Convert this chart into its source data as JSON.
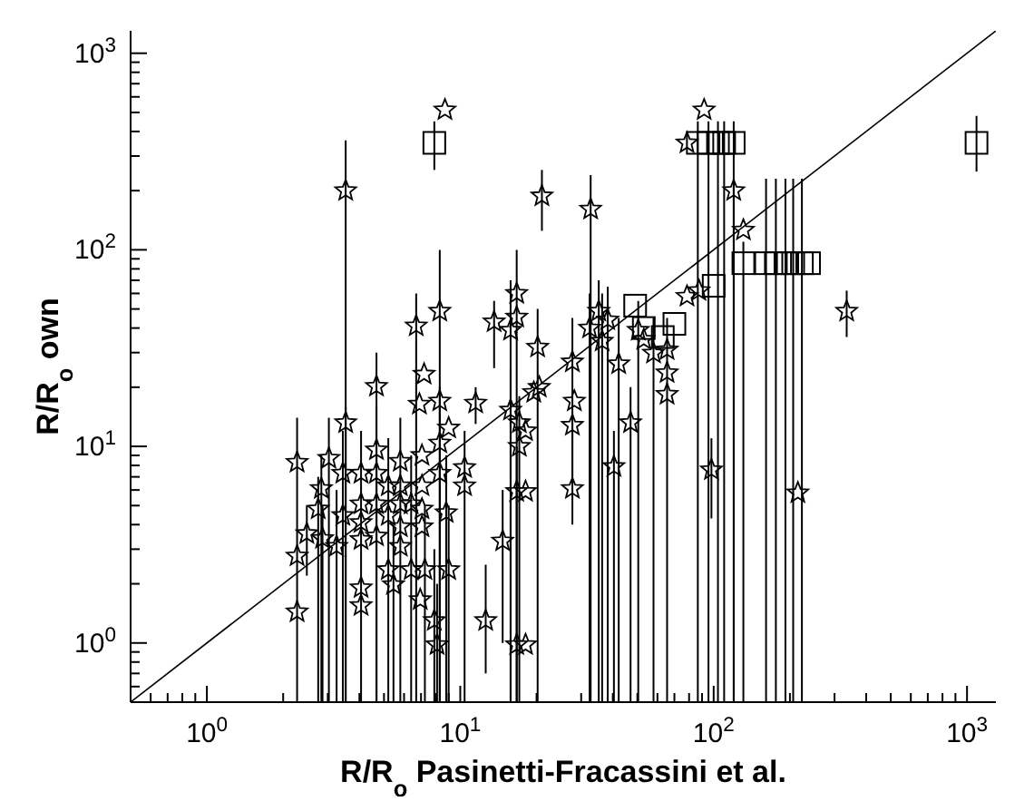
{
  "chart_data": {
    "type": "scatter",
    "xlabel": "R/R$_{o}$ Pasinetti-Fracassini et al.",
    "ylabel": "R/R$_{o}$ own",
    "log": "xy",
    "xlim": [
      0.5,
      1300
    ],
    "ylim": [
      0.5,
      1300
    ],
    "xticks": [
      {
        "value": 0.6,
        "label": null
      },
      {
        "value": 0.7,
        "label": null
      },
      {
        "value": 0.8,
        "label": null
      },
      {
        "value": 0.9,
        "label": null
      },
      {
        "value": 1,
        "label": "10$^{0}$"
      },
      {
        "value": 2,
        "label": null
      },
      {
        "value": 3,
        "label": null
      },
      {
        "value": 4,
        "label": null
      },
      {
        "value": 5,
        "label": null
      },
      {
        "value": 6,
        "label": null
      },
      {
        "value": 7,
        "label": null
      },
      {
        "value": 8,
        "label": null
      },
      {
        "value": 9,
        "label": null
      },
      {
        "value": 10,
        "label": "10$^{1}$"
      },
      {
        "value": 20,
        "label": null
      },
      {
        "value": 30,
        "label": null
      },
      {
        "value": 40,
        "label": null
      },
      {
        "value": 50,
        "label": null
      },
      {
        "value": 60,
        "label": null
      },
      {
        "value": 70,
        "label": null
      },
      {
        "value": 80,
        "label": null
      },
      {
        "value": 90,
        "label": null
      },
      {
        "value": 100,
        "label": "10$^{2}$"
      },
      {
        "value": 200,
        "label": null
      },
      {
        "value": 300,
        "label": null
      },
      {
        "value": 400,
        "label": null
      },
      {
        "value": 500,
        "label": null
      },
      {
        "value": 600,
        "label": null
      },
      {
        "value": 700,
        "label": null
      },
      {
        "value": 800,
        "label": null
      },
      {
        "value": 900,
        "label": null
      },
      {
        "value": 1000,
        "label": "10$^{3}$"
      }
    ],
    "yticks": [
      {
        "value": 0.6,
        "label": null
      },
      {
        "value": 0.7,
        "label": null
      },
      {
        "value": 0.8,
        "label": null
      },
      {
        "value": 0.9,
        "label": null
      },
      {
        "value": 1,
        "label": "10$^{0}$"
      },
      {
        "value": 2,
        "label": null
      },
      {
        "value": 3,
        "label": null
      },
      {
        "value": 4,
        "label": null
      },
      {
        "value": 5,
        "label": null
      },
      {
        "value": 6,
        "label": null
      },
      {
        "value": 7,
        "label": null
      },
      {
        "value": 8,
        "label": null
      },
      {
        "value": 9,
        "label": null
      },
      {
        "value": 10,
        "label": "10$^{1}$"
      },
      {
        "value": 20,
        "label": null
      },
      {
        "value": 30,
        "label": null
      },
      {
        "value": 40,
        "label": null
      },
      {
        "value": 50,
        "label": null
      },
      {
        "value": 60,
        "label": null
      },
      {
        "value": 70,
        "label": null
      },
      {
        "value": 80,
        "label": null
      },
      {
        "value": 90,
        "label": null
      },
      {
        "value": 100,
        "label": "10$^{2}$"
      },
      {
        "value": 200,
        "label": null
      },
      {
        "value": 300,
        "label": null
      },
      {
        "value": 400,
        "label": null
      },
      {
        "value": 500,
        "label": null
      },
      {
        "value": 600,
        "label": null
      },
      {
        "value": 700,
        "label": null
      },
      {
        "value": 800,
        "label": null
      },
      {
        "value": 900,
        "label": null
      },
      {
        "value": 1000,
        "label": "10$^{3}$"
      }
    ],
    "series": [
      {
        "type": "scatter",
        "marker": "star",
        "color": "#000000",
        "x": [
          2.27,
          2.27,
          2.27,
          2.48,
          2.75,
          2.83,
          2.86,
          3.03,
          3.25,
          3.53,
          3.44,
          3.44,
          3.53,
          4.06,
          4.06,
          4.06,
          4.06,
          4.06,
          4.06,
          4.67,
          4.67,
          4.67,
          4.67,
          4.67,
          5.2,
          5.2,
          5.2,
          5.45,
          5.8,
          5.8,
          5.8,
          5.8,
          5.8,
          6.4,
          6.4,
          6.7,
          6.9,
          7.06,
          7.06,
          7.06,
          7.06,
          7.2,
          7.25,
          6.95,
          7.9,
          8.1,
          8.3,
          8.3,
          8.3,
          8.3,
          8.8,
          9.0,
          9.0,
          10.4,
          10.4,
          11.5,
          12.6,
          13.6,
          14.7,
          15.8,
          15.8,
          16.7,
          16.7,
          17.1,
          17.1,
          18.1,
          16.7,
          18.1,
          16.7,
          18.1,
          20.2,
          19.5,
          20.5,
          21,
          27.7,
          28.2,
          27.7,
          27.7,
          32.4,
          32.7,
          35.2,
          36.3,
          38.2,
          42.2,
          40.4,
          47,
          50.4,
          53,
          57.9,
          65.5,
          65.5,
          65.5,
          78.5,
          87.5,
          98,
          215,
          335,
          8.7,
          78.5,
          91.7,
          120,
          131
        ],
        "values": [
          8.3,
          2.77,
          1.44,
          3.6,
          4.8,
          6.1,
          3.4,
          8.7,
          3.1,
          13.2,
          4.45,
          7.3,
          200,
          7.3,
          5.1,
          4.1,
          3.36,
          1.91,
          1.55,
          9.6,
          7.3,
          5.1,
          3.5,
          20.2,
          6.3,
          4.45,
          2.36,
          1.98,
          8.4,
          6.3,
          5.1,
          3.9,
          3.1,
          5.1,
          2.36,
          41,
          16.4,
          9.0,
          6.3,
          4.8,
          3.9,
          23.3,
          2.36,
          1.66,
          1.3,
          0.98,
          48.7,
          17,
          10.4,
          7.3,
          4.6,
          2.36,
          12.4,
          7.8,
          6.3,
          16.6,
          1.3,
          43,
          3.3,
          39,
          15.3,
          60,
          45.5,
          13.2,
          10,
          12,
          5.9,
          5.9,
          0.98,
          0.98,
          32,
          18.8,
          20,
          188,
          26.9,
          17,
          12.8,
          6.1,
          40,
          161,
          48.7,
          34.3,
          44,
          26.3,
          7.9,
          13.2,
          39,
          35,
          29.8,
          31,
          23.7,
          18.4,
          58,
          62,
          7.6,
          5.8,
          48.7,
          515,
          350,
          515,
          200,
          126
        ],
        "errors": [
          [
            0.5,
            14
          ],
          null,
          null,
          [
            2.2,
            5
          ],
          [
            0.5,
            7
          ],
          [
            0.5,
            9
          ],
          [
            0.5,
            5
          ],
          [
            0.5,
            14
          ],
          [
            0.5,
            6
          ],
          [
            0.5,
            16
          ],
          [
            0.5,
            8
          ],
          [
            0.5,
            12
          ],
          [
            0.5,
            360
          ],
          [
            0.5,
            12
          ],
          null,
          null,
          null,
          null,
          null,
          [
            0.5,
            16
          ],
          null,
          [
            0.5,
            9
          ],
          null,
          [
            0.5,
            30
          ],
          [
            0.5,
            11
          ],
          null,
          null,
          [
            0.5,
            4
          ],
          [
            0.5,
            14
          ],
          null,
          null,
          null,
          null,
          [
            0.5,
            9
          ],
          null,
          [
            0.5,
            60
          ],
          null,
          null,
          null,
          null,
          null,
          null,
          [
            0.5,
            5
          ],
          null,
          [
            0.5,
            3
          ],
          [
            0.5,
            2
          ],
          [
            0.5,
            100
          ],
          null,
          [
            0.5,
            20
          ],
          null,
          [
            0.5,
            9
          ],
          [
            0.5,
            5
          ],
          null,
          [
            0.5,
            12
          ],
          null,
          [
            13,
            20
          ],
          [
            0.7,
            2.5
          ],
          [
            25,
            55
          ],
          [
            1,
            6
          ],
          [
            0.5,
            70
          ],
          [
            0.5,
            25
          ],
          [
            0.5,
            100
          ],
          null,
          null,
          [
            0.5,
            18
          ],
          null,
          [
            0.5,
            10
          ],
          null,
          null,
          null,
          [
            0.5,
            50
          ],
          null,
          null,
          [
            125,
            255
          ],
          [
            7,
            45
          ],
          null,
          null,
          [
            4,
            15
          ],
          [
            0.5,
            60
          ],
          [
            0.5,
            240
          ],
          [
            0.5,
            70
          ],
          [
            0.5,
            60
          ],
          [
            0.5,
            65
          ],
          [
            0.5,
            45
          ],
          [
            0.5,
            12
          ],
          [
            0.5,
            20
          ],
          [
            0.5,
            55
          ],
          null,
          [
            0.5,
            45
          ],
          [
            0.5,
            45
          ],
          null,
          null,
          null,
          null,
          [
            4.3,
            11
          ],
          null,
          [
            36,
            62
          ],
          null,
          null,
          null,
          [
            0.5,
            230
          ],
          null
        ]
      },
      {
        "type": "scatter",
        "marker": "square",
        "color": "#000000",
        "x": [
          7.9,
          86.6,
          95.4,
          104,
          110,
          120,
          131,
          161,
          176,
          192,
          206,
          223,
          238,
          1090,
          100,
          49,
          53,
          70,
          63
        ],
        "values": [
          350,
          350,
          350,
          350,
          350,
          350,
          85.5,
          85.5,
          85.5,
          85.5,
          85.5,
          85.5,
          85.5,
          350,
          65.6,
          52,
          40,
          42,
          36
        ],
        "errors": [
          [
            255,
            450
          ],
          [
            0.5,
            450
          ],
          [
            0.5,
            450
          ],
          [
            0.5,
            450
          ],
          [
            0.5,
            450
          ],
          [
            0.5,
            450
          ],
          [
            0.5,
            110
          ],
          [
            0.5,
            230
          ],
          [
            0.5,
            230
          ],
          [
            0.5,
            230
          ],
          [
            0.5,
            230
          ],
          [
            0.5,
            230
          ],
          null,
          [
            250,
            480
          ],
          null,
          null,
          null,
          null,
          null
        ]
      },
      {
        "type": "line",
        "color": "#000000",
        "x": [
          0.5,
          1300
        ],
        "values": [
          0.5,
          1300
        ]
      }
    ]
  }
}
